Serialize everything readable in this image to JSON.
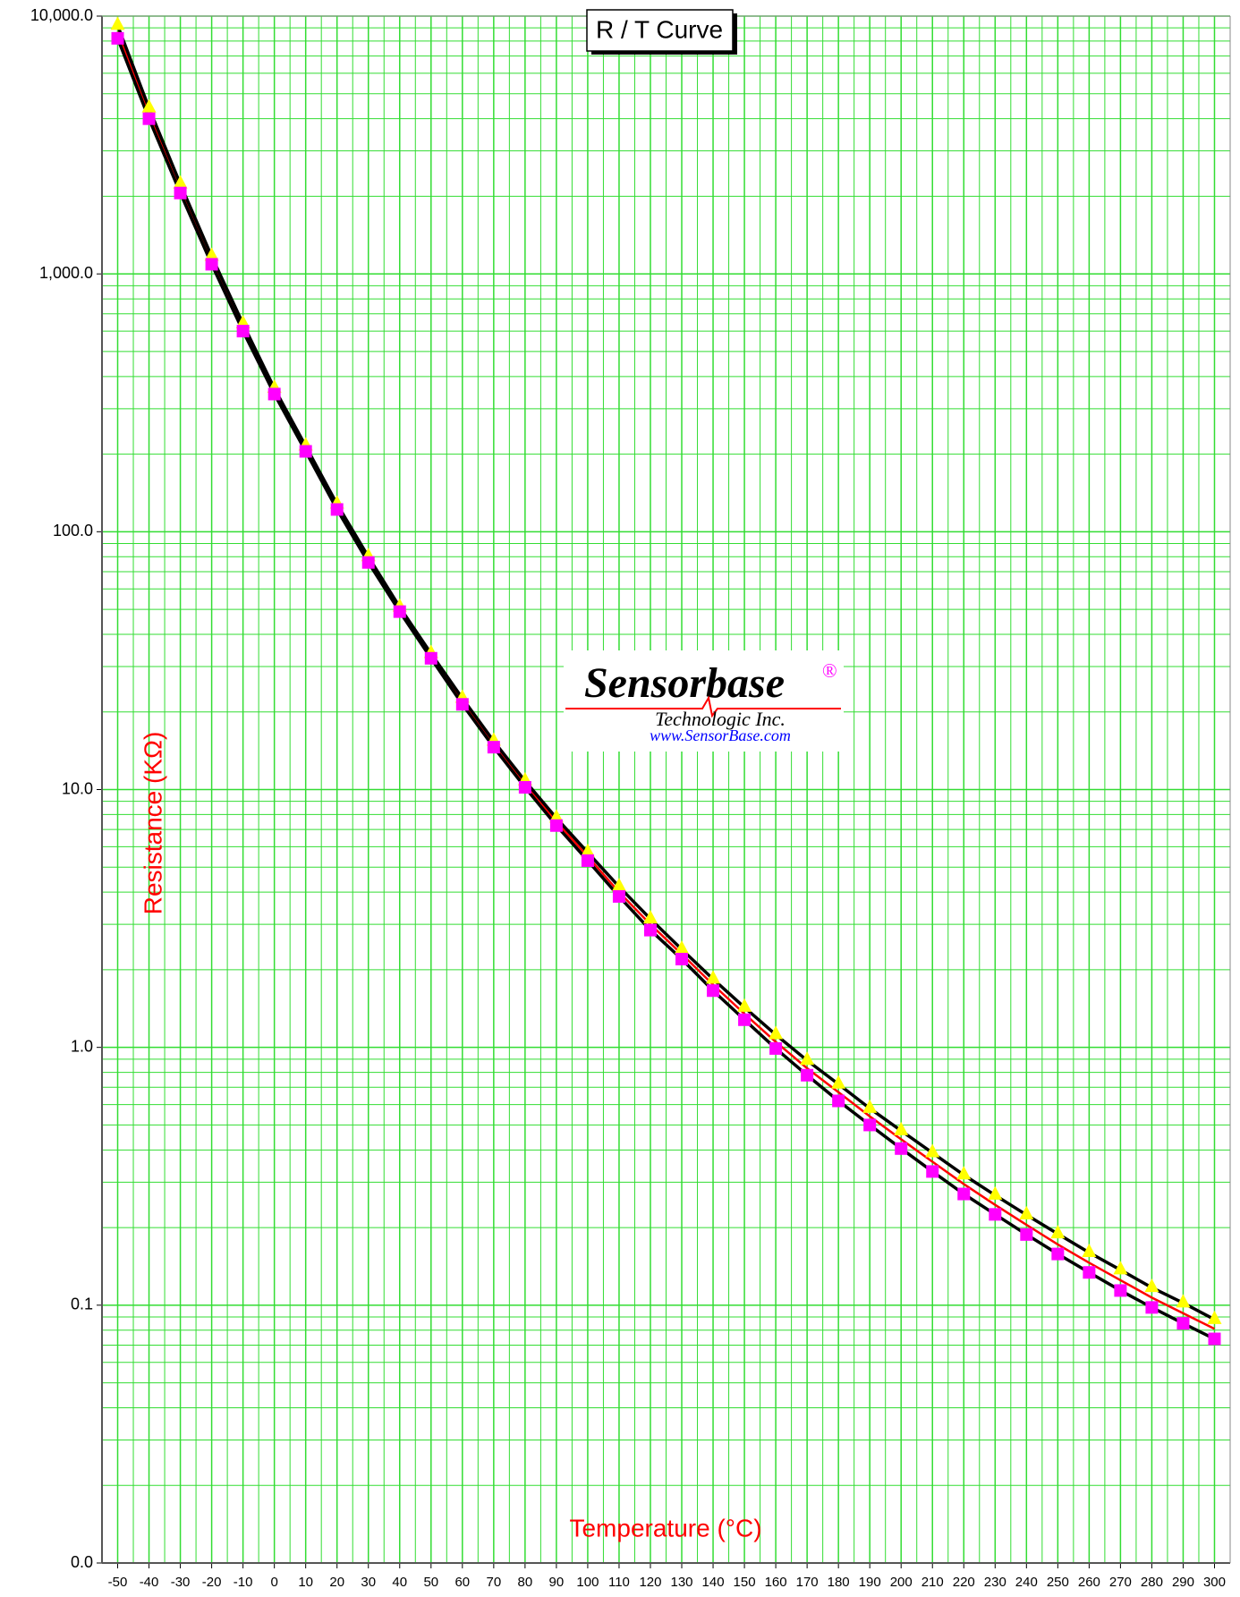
{
  "chart_data": {
    "type": "line",
    "title": "R / T Curve",
    "x_label": "Temperature (°C)",
    "y_label": "Resistance (KΩ)",
    "logo": {
      "name": "Sensorbase",
      "mark": "®",
      "company": "Technologic Inc.",
      "url": "www.SensorBase.com"
    },
    "x": [
      -50,
      -40,
      -30,
      -20,
      -10,
      0,
      10,
      20,
      30,
      40,
      50,
      60,
      70,
      80,
      90,
      100,
      110,
      120,
      130,
      140,
      150,
      160,
      170,
      180,
      190,
      200,
      210,
      220,
      230,
      240,
      250,
      260,
      270,
      280,
      290,
      300
    ],
    "xlim": [
      -55,
      305
    ],
    "xticks": [
      -50,
      -40,
      -30,
      -20,
      -10,
      0,
      10,
      20,
      30,
      40,
      50,
      60,
      70,
      80,
      90,
      100,
      110,
      120,
      130,
      140,
      150,
      160,
      170,
      180,
      190,
      200,
      210,
      220,
      230,
      240,
      250,
      260,
      270,
      280,
      290,
      300
    ],
    "ylim": [
      0.01,
      10000
    ],
    "log_y": true,
    "yticks": [
      {
        "value": 0.01,
        "label": "0.0"
      },
      0.1,
      {
        "value": 1,
        "label": "1.0"
      },
      {
        "value": 10,
        "label": "10.0"
      },
      {
        "value": 100,
        "label": "100.0"
      },
      {
        "value": 1000,
        "label": "1,000.0"
      },
      {
        "value": 10000,
        "label": "10,000.0"
      }
    ],
    "grid": true,
    "grid_color": "#33dd33",
    "series": [
      {
        "color": "#000000",
        "marker": "triangle",
        "marker_color": "#ffff00",
        "values": [
          9200,
          4400,
          2230,
          1170,
          640,
          360,
          215,
          128,
          80,
          51,
          33.7,
          22.6,
          15.4,
          10.8,
          7.75,
          5.7,
          4.2,
          3.15,
          2.4,
          1.84,
          1.43,
          1.12,
          0.89,
          0.72,
          0.58,
          0.475,
          0.39,
          0.32,
          0.267,
          0.224,
          0.189,
          0.16,
          0.137,
          0.117,
          0.102,
          0.088
        ]
      },
      {
        "color": "#ff0000",
        "values": [
          8700,
          4200,
          2150,
          1130,
          620,
          350,
          210,
          125,
          78,
          50,
          33,
          22,
          15,
          10.5,
          7.5,
          5.5,
          4.0,
          3.0,
          2.3,
          1.75,
          1.35,
          1.05,
          0.83,
          0.67,
          0.54,
          0.44,
          0.36,
          0.295,
          0.245,
          0.205,
          0.172,
          0.146,
          0.125,
          0.107,
          0.093,
          0.081
        ]
      },
      {
        "color": "#000000",
        "marker": "square",
        "marker_color": "#ff00ff",
        "values": [
          8200,
          4000,
          2060,
          1090,
          600,
          342,
          205,
          122,
          76,
          49,
          32.3,
          21.4,
          14.6,
          10.2,
          7.25,
          5.3,
          3.85,
          2.85,
          2.2,
          1.66,
          1.28,
          0.99,
          0.78,
          0.62,
          0.5,
          0.405,
          0.33,
          0.27,
          0.225,
          0.188,
          0.158,
          0.134,
          0.114,
          0.098,
          0.085,
          0.074
        ]
      }
    ]
  }
}
